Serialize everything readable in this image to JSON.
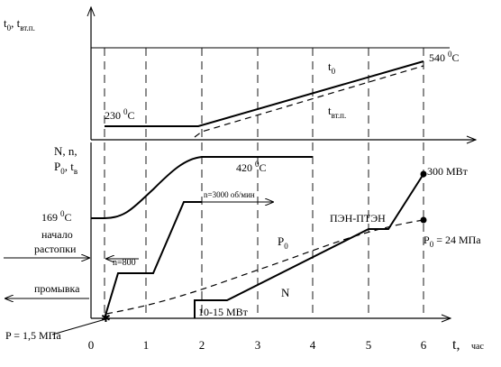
{
  "diagram": {
    "top_y_label_main": "t",
    "top_y_label_sub0": "0",
    "top_y_label_sep": ", t",
    "top_y_label_sub1": "вт.п.",
    "mid_y_label_line1": "N, n,",
    "mid_y_label_line2_a": "P",
    "mid_y_label_line2_sub_a": "0",
    "mid_y_label_line2_b": ", t",
    "mid_y_label_line2_sub_b": "в",
    "x_axis_label": "t,",
    "x_axis_unit": "час",
    "x_ticks": [
      "0",
      "1",
      "2",
      "3",
      "4",
      "5",
      "6"
    ],
    "temp_start": "230 ",
    "temp_start_deg": "0",
    "temp_start_unit": "C",
    "temp_end": "540 ",
    "temp_end_deg": "0",
    "temp_end_unit": "C",
    "t0_label": "t",
    "t0_label_sub": "0",
    "tvtp_label": "t",
    "tvtp_label_sub": "вт.п.",
    "tv_start": "169 ",
    "tv_start_deg": "0",
    "tv_start_unit": "C",
    "tv_end": "420 ",
    "tv_end_deg": "0",
    "tv_end_unit": "C",
    "n_label": "n=3000 об/мин",
    "n_small_label": "n=800",
    "start_label_1": "начало",
    "start_label_2": "растопки",
    "flush_label": "промывка",
    "pen_label": "ПЭН-ПТЭН",
    "p0_label": "P",
    "p0_label_sub": "0",
    "p0_end_label": "P",
    "p0_end_label_sub": "0",
    "p0_end_value": " = 24 МПа",
    "n_power_label": "N",
    "power_low_label": "10-15 МВт",
    "power_end_label": "300 МВт",
    "p_start_label": "P = 1,5 МПа"
  }
}
